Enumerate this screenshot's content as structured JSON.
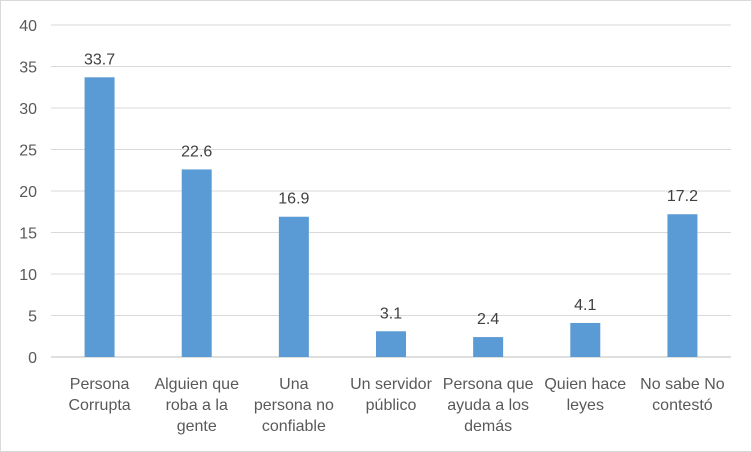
{
  "chart_data": {
    "type": "bar",
    "categories": [
      [
        "Persona",
        "Corrupta"
      ],
      [
        "Alguien que",
        "roba a la",
        "gente"
      ],
      [
        "Una",
        "persona no",
        "confiable"
      ],
      [
        "Un servidor",
        "público"
      ],
      [
        "Persona que",
        "ayuda a los",
        "demás"
      ],
      [
        "Quien hace",
        "leyes"
      ],
      [
        "No sabe No",
        "contestó"
      ]
    ],
    "values": [
      33.7,
      22.6,
      16.9,
      3.1,
      2.4,
      4.1,
      17.2
    ],
    "data_labels": [
      "33.7",
      "22.6",
      "16.9",
      "3.1",
      "2.4",
      "4.1",
      "17.2"
    ],
    "yticks": [
      0,
      5,
      10,
      15,
      20,
      25,
      30,
      35,
      40
    ],
    "ylim": [
      0,
      40
    ],
    "grid": true,
    "legend": "none",
    "bar_color": "#5b9bd5"
  }
}
